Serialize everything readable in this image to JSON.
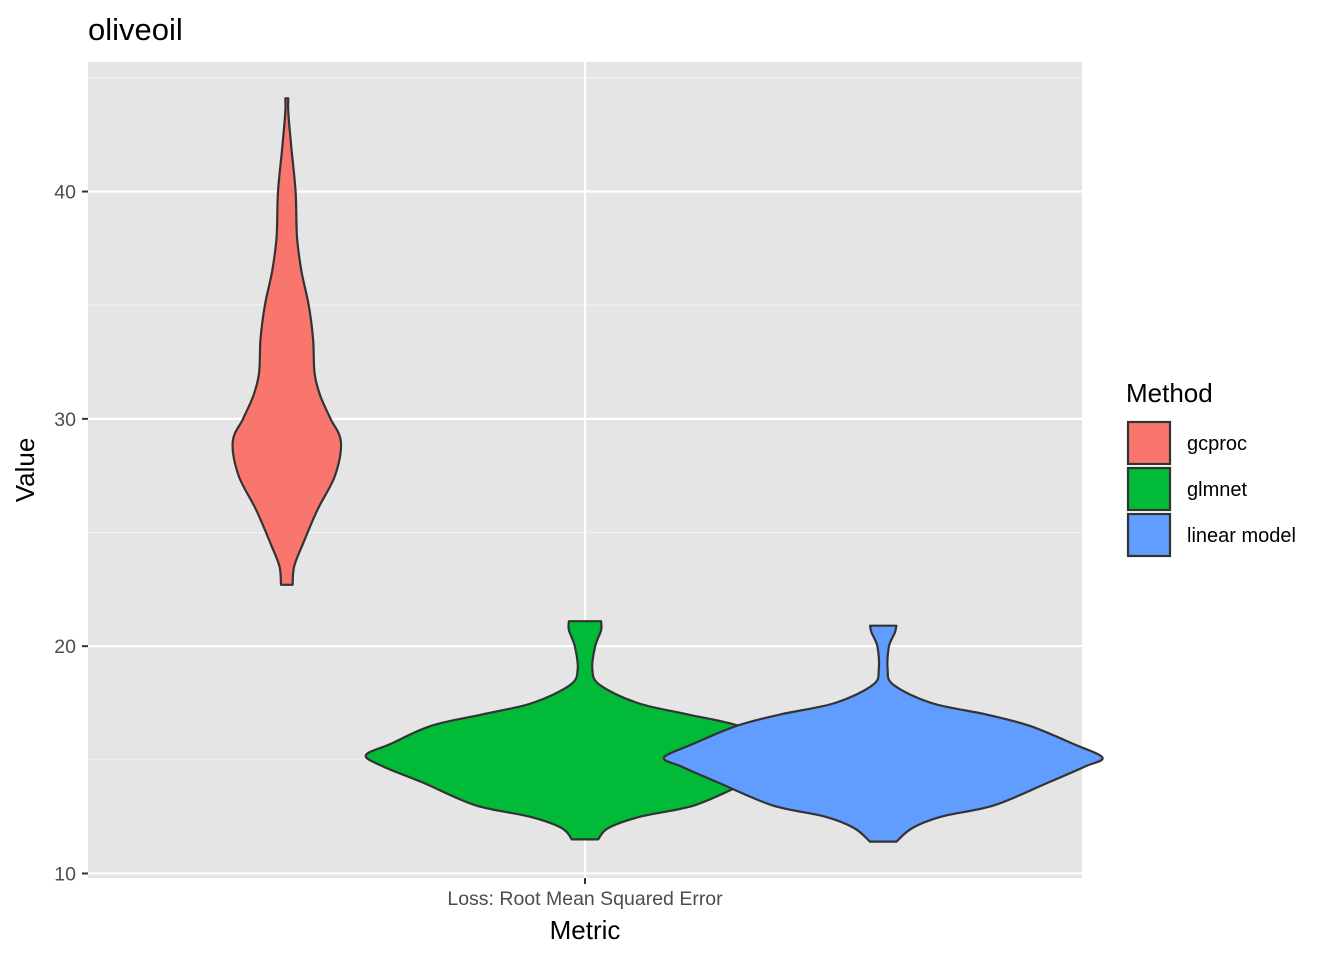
{
  "chart_data": {
    "type": "violin",
    "title": "oliveoil",
    "xlabel": "Metric",
    "ylabel": "Value",
    "categories": [
      "Loss: Root Mean Squared Error"
    ],
    "ylim": [
      9.8,
      45.7
    ],
    "y_ticks": [
      10,
      20,
      30,
      40
    ],
    "grid": true,
    "legend": {
      "title": "Method",
      "position": "right"
    },
    "series": [
      {
        "name": "gcproc",
        "color": "#F8766D",
        "min": 22.7,
        "max": 44.1,
        "profile": [
          [
            22.7,
            0.04
          ],
          [
            23.5,
            0.05
          ],
          [
            24.5,
            0.11
          ],
          [
            26.0,
            0.21
          ],
          [
            27.5,
            0.33
          ],
          [
            29.0,
            0.37
          ],
          [
            30.0,
            0.3
          ],
          [
            31.0,
            0.23
          ],
          [
            32.0,
            0.19
          ],
          [
            33.5,
            0.18
          ],
          [
            35.0,
            0.15
          ],
          [
            36.5,
            0.1
          ],
          [
            38.0,
            0.07
          ],
          [
            40.0,
            0.06
          ],
          [
            42.0,
            0.03
          ],
          [
            43.5,
            0.01
          ],
          [
            44.1,
            0.01
          ]
        ]
      },
      {
        "name": "glmnet",
        "color": "#00BA38",
        "min": 11.5,
        "max": 21.1,
        "profile": [
          [
            11.5,
            0.09
          ],
          [
            12.0,
            0.16
          ],
          [
            12.5,
            0.38
          ],
          [
            13.0,
            0.75
          ],
          [
            14.0,
            1.11
          ],
          [
            14.7,
            1.38
          ],
          [
            15.2,
            1.5
          ],
          [
            15.7,
            1.33
          ],
          [
            16.5,
            1.05
          ],
          [
            17.0,
            0.7
          ],
          [
            17.5,
            0.36
          ],
          [
            18.3,
            0.1
          ],
          [
            19.0,
            0.05
          ],
          [
            20.0,
            0.07
          ],
          [
            20.7,
            0.11
          ],
          [
            21.1,
            0.11
          ]
        ]
      },
      {
        "name": "linear model",
        "color": "#619CFF",
        "min": 11.4,
        "max": 20.9,
        "profile": [
          [
            11.4,
            0.09
          ],
          [
            12.0,
            0.2
          ],
          [
            12.5,
            0.4
          ],
          [
            13.0,
            0.76
          ],
          [
            14.0,
            1.13
          ],
          [
            14.7,
            1.38
          ],
          [
            15.1,
            1.5
          ],
          [
            15.7,
            1.3
          ],
          [
            16.5,
            1.0
          ],
          [
            17.0,
            0.7
          ],
          [
            17.5,
            0.33
          ],
          [
            18.3,
            0.07
          ],
          [
            19.0,
            0.03
          ],
          [
            20.0,
            0.04
          ],
          [
            20.6,
            0.08
          ],
          [
            20.9,
            0.09
          ]
        ]
      }
    ]
  }
}
